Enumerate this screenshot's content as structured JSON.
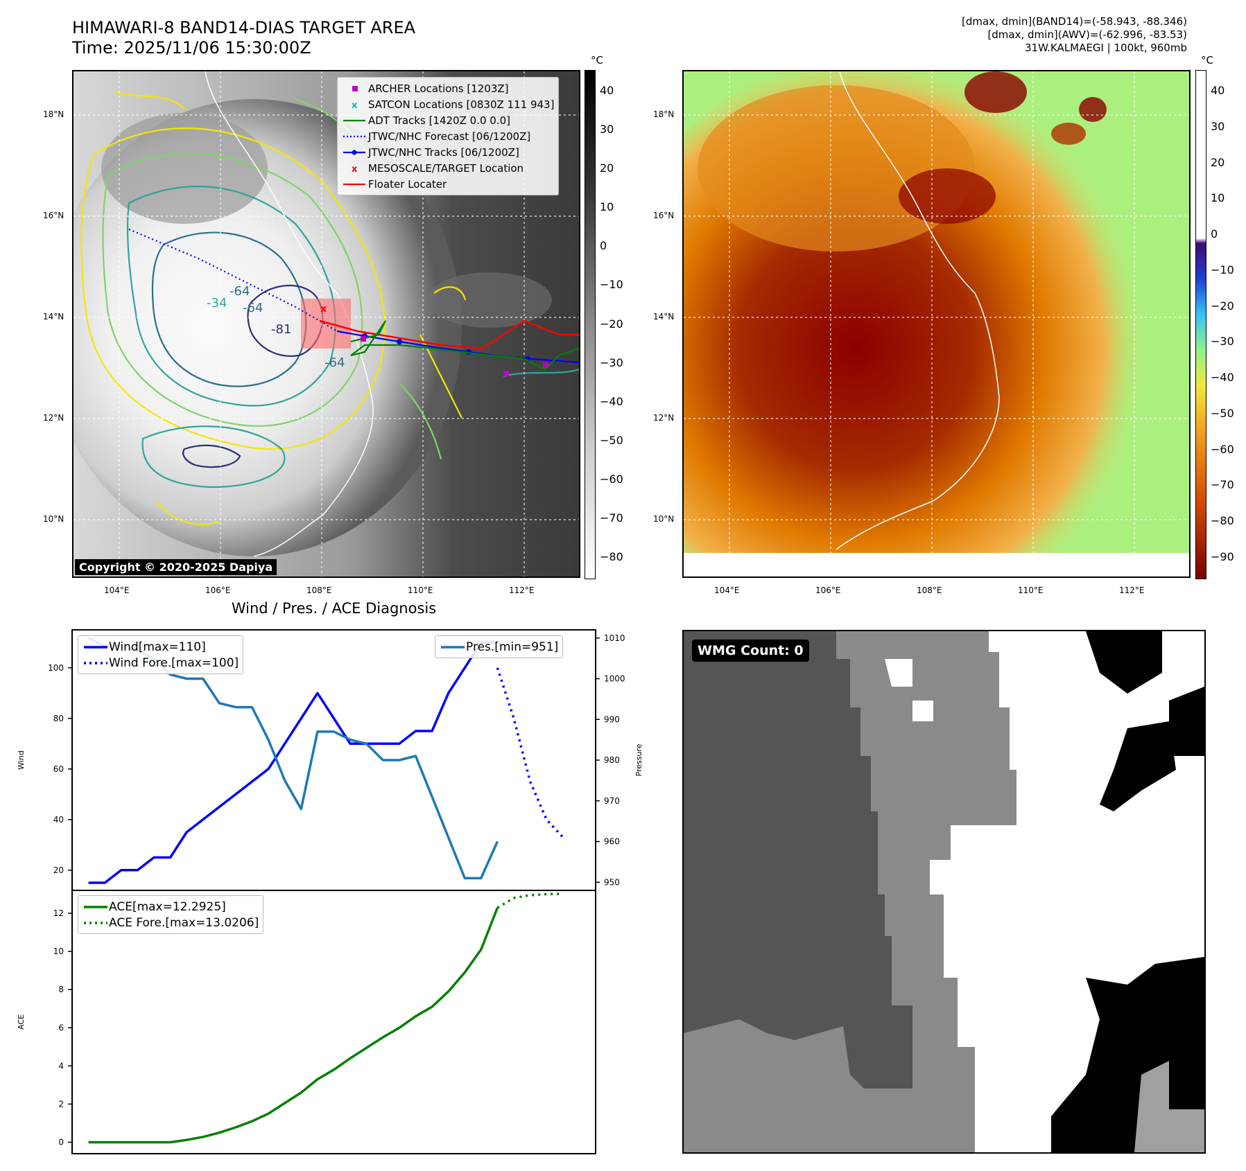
{
  "header": {
    "title": "HIMAWARI-8 BAND14-DIAS TARGET AREA",
    "time": "Time: 2025/11/06 15:30:00Z",
    "meta_line1": "[dmax, dmin](BAND14)=(-58.943, -88.346)",
    "meta_line2": "[dmax, dmin](AWV)=(-62.996, -83.53)",
    "meta_line3": "31W.KALMAEGI | 100kt, 960mb"
  },
  "ir_panel": {
    "copyright": "Copyright © 2020-2025 Dapiya",
    "lon_ticks": [
      "104°E",
      "106°E",
      "108°E",
      "110°E",
      "112°E"
    ],
    "lat_ticks": [
      "18°N",
      "16°N",
      "14°N",
      "12°N",
      "10°N"
    ],
    "contour_labels": [
      "-64",
      "-64",
      "-64",
      "-81",
      "-34"
    ],
    "legend": [
      {
        "label": "ARCHER Locations [1203Z]",
        "color": "#bf00bf",
        "icon": "square-marker"
      },
      {
        "label": "SATCON Locations [0830Z 111 943]",
        "color": "#00bfbf",
        "icon": "x-marker"
      },
      {
        "label": "ADT Tracks [1420Z 0.0 0.0]",
        "color": "#008000",
        "icon": "solid-line"
      },
      {
        "label": "JTWC/NHC Forecast [06/1200Z]",
        "color": "#0000ff",
        "icon": "dotted-line"
      },
      {
        "label": "JTWC/NHC Tracks [06/1200Z]",
        "color": "#0000ff",
        "icon": "line-with-dots"
      },
      {
        "label": "MESOSCALE/TARGET Location",
        "color": "#ff0000",
        "icon": "x-marker"
      },
      {
        "label": "Floater Locater",
        "color": "#ff0000",
        "icon": "solid-line"
      }
    ],
    "colorbar": {
      "unit": "°C",
      "ticks": [
        "40",
        "30",
        "20",
        "10",
        "0",
        "−10",
        "−20",
        "−30",
        "−40",
        "−50",
        "−60",
        "−70",
        "−80"
      ]
    }
  },
  "awv_panel": {
    "lon_ticks": [
      "104°E",
      "106°E",
      "108°E",
      "110°E",
      "112°E"
    ],
    "lat_ticks": [
      "18°N",
      "16°N",
      "14°N",
      "12°N",
      "10°N"
    ],
    "colorbar": {
      "unit": "°C",
      "ticks": [
        "40",
        "30",
        "20",
        "10",
        "0",
        "−10",
        "−20",
        "−30",
        "−40",
        "−50",
        "−60",
        "−70",
        "−80",
        "−90"
      ]
    }
  },
  "wmg_panel": {
    "label": "WMG Count: 0"
  },
  "chart_data": [
    {
      "type": "line",
      "title": "Wind / Pres. / ACE Diagnosis",
      "ylabel": "Wind",
      "ylabel_right": "Pressure",
      "ylim": [
        12,
        115
      ],
      "ylim_right": [
        948,
        1012
      ],
      "yticks": [
        20,
        40,
        60,
        80,
        100
      ],
      "yticks_right": [
        950,
        960,
        970,
        980,
        990,
        1000,
        1010
      ],
      "xlim": [
        -1,
        31
      ],
      "series": [
        {
          "name": "Wind[max=110]",
          "color": "#0000ff",
          "style": "solid",
          "axis": "left",
          "x": [
            0,
            1,
            2,
            3,
            4,
            5,
            6,
            7,
            8,
            9,
            10,
            11,
            12,
            13,
            14,
            15,
            16,
            17,
            18,
            19,
            20,
            21,
            22,
            23,
            24,
            25
          ],
          "y": [
            15,
            15,
            20,
            20,
            25,
            25,
            35,
            40,
            45,
            50,
            55,
            60,
            70,
            80,
            90,
            80,
            70,
            70,
            70,
            70,
            75,
            75,
            90,
            100,
            110,
            110
          ]
        },
        {
          "name": "Wind Fore.[max=100]",
          "color": "#0000ff",
          "style": "dotted",
          "axis": "left",
          "x": [
            25,
            26,
            27,
            28,
            29
          ],
          "y": [
            100,
            80,
            55,
            40,
            33
          ]
        },
        {
          "name": "Pres.[min=951]",
          "color": "#1f77b4",
          "style": "solid",
          "axis": "right",
          "x": [
            0,
            1,
            2,
            3,
            4,
            5,
            6,
            7,
            8,
            9,
            10,
            11,
            12,
            13,
            14,
            15,
            16,
            17,
            18,
            19,
            20,
            21,
            22,
            23,
            24,
            25
          ],
          "y": [
            1010,
            1008,
            1008,
            1007,
            1005,
            1001,
            1000,
            1000,
            994,
            993,
            993,
            985,
            975,
            968,
            987,
            987,
            985,
            984,
            980,
            980,
            981,
            971,
            961,
            951,
            951,
            960
          ]
        }
      ]
    },
    {
      "type": "line",
      "ylabel": "ACE",
      "ylim": [
        -0.6,
        13.2
      ],
      "yticks": [
        0,
        2,
        4,
        6,
        8,
        10,
        12
      ],
      "xlim": [
        -1,
        31
      ],
      "series": [
        {
          "name": "ACE[max=12.2925]",
          "color": "#008000",
          "style": "solid",
          "x": [
            0,
            1,
            2,
            3,
            4,
            5,
            6,
            7,
            8,
            9,
            10,
            11,
            12,
            13,
            14,
            15,
            16,
            17,
            18,
            19,
            20,
            21,
            22,
            23,
            24,
            25
          ],
          "y": [
            0,
            0,
            0,
            0,
            0,
            0,
            0.12,
            0.28,
            0.5,
            0.78,
            1.1,
            1.5,
            2.05,
            2.6,
            3.3,
            3.8,
            4.4,
            4.95,
            5.5,
            6.0,
            6.6,
            7.1,
            7.9,
            8.9,
            10.1,
            12.29
          ]
        },
        {
          "name": "ACE Fore.[max=13.0206]",
          "color": "#008000",
          "style": "dotted",
          "x": [
            25,
            26,
            27,
            28,
            29
          ],
          "y": [
            12.29,
            12.8,
            12.95,
            13.0,
            13.02
          ]
        }
      ]
    }
  ]
}
